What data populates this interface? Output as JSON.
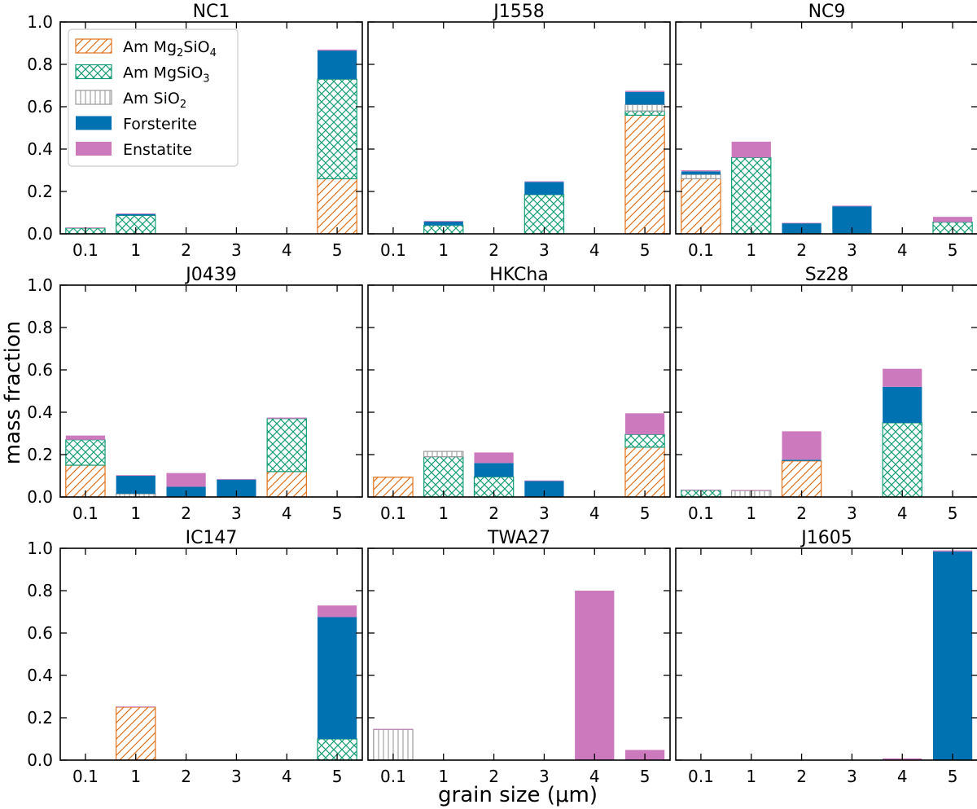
{
  "figure": {
    "ylabel": "mass fraction",
    "xlabel": "grain size (μm)"
  },
  "colors": {
    "am_mg2sio4": "#e0711a",
    "am_mgsio3": "#139d76",
    "am_sio2": "#9a9a9a",
    "forsterite": "#0072b2",
    "enstatite": "#cc79be"
  },
  "legend": {
    "placement": "upper-left of first panel",
    "entries": [
      {
        "key": "am_mg2sio4",
        "label": "Am Mg2SiO4",
        "prefix": "Am Mg",
        "sub1": "2",
        "mid": "SiO",
        "sub2": "4",
        "pattern": "diagonal-hatch"
      },
      {
        "key": "am_mgsio3",
        "label": "Am MgSiO3",
        "prefix": "Am MgSiO",
        "sub1": "3",
        "mid": "",
        "sub2": "",
        "pattern": "cross-hatch"
      },
      {
        "key": "am_sio2",
        "label": "Am SiO2",
        "prefix": "Am SiO",
        "sub1": "2",
        "mid": "",
        "sub2": "",
        "pattern": "vertical-hatch"
      },
      {
        "key": "forsterite",
        "label": "Forsterite",
        "prefix": "Forsterite",
        "sub1": "",
        "mid": "",
        "sub2": "",
        "pattern": "solid"
      },
      {
        "key": "enstatite",
        "label": "Enstatite",
        "prefix": "Enstatite",
        "sub1": "",
        "mid": "",
        "sub2": "",
        "pattern": "solid"
      }
    ]
  },
  "chart_data": {
    "type": "bar",
    "stacked": true,
    "categories": [
      "0.1",
      "1",
      "2",
      "3",
      "4",
      "5"
    ],
    "ylim": [
      0,
      1.0
    ],
    "yticks": [
      "0.0",
      "0.2",
      "0.4",
      "0.6",
      "0.8",
      "1.0"
    ],
    "series_order": [
      "am_mg2sio4",
      "am_mgsio3",
      "am_sio2",
      "forsterite",
      "enstatite"
    ],
    "panels": [
      {
        "title": "NC1",
        "series": {
          "am_mg2sio4": [
            0,
            0,
            0,
            0,
            0,
            0.26
          ],
          "am_mgsio3": [
            0.027,
            0.087,
            0,
            0,
            0,
            0.47
          ],
          "am_sio2": [
            0,
            0,
            0,
            0,
            0,
            0
          ],
          "forsterite": [
            0,
            0.007,
            0,
            0,
            0,
            0.135
          ],
          "enstatite": [
            0.003,
            0.002,
            0,
            0,
            0,
            0.005
          ]
        }
      },
      {
        "title": "J1558",
        "series": {
          "am_mg2sio4": [
            0,
            0,
            0,
            0,
            0,
            0.56
          ],
          "am_mgsio3": [
            0,
            0.04,
            0,
            0.185,
            0,
            0.02
          ],
          "am_sio2": [
            0,
            0,
            0,
            0,
            0,
            0.03
          ],
          "forsterite": [
            0,
            0.018,
            0,
            0.06,
            0,
            0.06
          ],
          "enstatite": [
            0,
            0.003,
            0,
            0.003,
            0,
            0.005
          ]
        }
      },
      {
        "title": "NC9",
        "series": {
          "am_mg2sio4": [
            0.26,
            0,
            0,
            0,
            0,
            0
          ],
          "am_mgsio3": [
            0,
            0.36,
            0,
            0,
            0,
            0.055
          ],
          "am_sio2": [
            0.02,
            0,
            0,
            0,
            0,
            0
          ],
          "forsterite": [
            0.015,
            0,
            0.05,
            0.13,
            0,
            0
          ],
          "enstatite": [
            0.005,
            0.075,
            0.002,
            0.003,
            0,
            0.025
          ]
        }
      },
      {
        "title": "J0439",
        "series": {
          "am_mg2sio4": [
            0.15,
            0,
            0,
            0,
            0.12,
            0
          ],
          "am_mgsio3": [
            0.12,
            0,
            0,
            0,
            0.25,
            0
          ],
          "am_sio2": [
            0,
            0.015,
            0,
            0,
            0,
            0
          ],
          "forsterite": [
            0,
            0.085,
            0.048,
            0.082,
            0,
            0
          ],
          "enstatite": [
            0.02,
            0.003,
            0.065,
            0.003,
            0.005,
            0
          ]
        }
      },
      {
        "title": "HKCha",
        "series": {
          "am_mg2sio4": [
            0.093,
            0,
            0,
            0,
            0,
            0.235
          ],
          "am_mgsio3": [
            0,
            0.19,
            0.095,
            0,
            0,
            0.06
          ],
          "am_sio2": [
            0,
            0.025,
            0,
            0,
            0,
            0
          ],
          "forsterite": [
            0,
            0,
            0.065,
            0.075,
            0,
            0
          ],
          "enstatite": [
            0,
            0,
            0.05,
            0.003,
            0,
            0.1
          ]
        }
      },
      {
        "title": "Sz28",
        "series": {
          "am_mg2sio4": [
            0,
            0,
            0.17,
            0,
            0,
            0
          ],
          "am_mgsio3": [
            0.032,
            0,
            0,
            0,
            0.35,
            0
          ],
          "am_sio2": [
            0,
            0.03,
            0,
            0,
            0,
            0
          ],
          "forsterite": [
            0,
            0,
            0.006,
            0,
            0.17,
            0
          ],
          "enstatite": [
            0.002,
            0.003,
            0.134,
            0,
            0.085,
            0
          ]
        }
      },
      {
        "title": "IC147",
        "series": {
          "am_mg2sio4": [
            0,
            0.25,
            0,
            0,
            0,
            0
          ],
          "am_mgsio3": [
            0,
            0,
            0,
            0,
            0,
            0.1
          ],
          "am_sio2": [
            0,
            0,
            0,
            0,
            0,
            0
          ],
          "forsterite": [
            0,
            0,
            0,
            0,
            0,
            0.575
          ],
          "enstatite": [
            0,
            0.003,
            0,
            0,
            0,
            0.055
          ]
        }
      },
      {
        "title": "TWA27",
        "series": {
          "am_mg2sio4": [
            0,
            0,
            0,
            0,
            0,
            0
          ],
          "am_mgsio3": [
            0,
            0,
            0,
            0,
            0,
            0
          ],
          "am_sio2": [
            0.145,
            0,
            0,
            0,
            0,
            0
          ],
          "forsterite": [
            0,
            0,
            0,
            0,
            0,
            0
          ],
          "enstatite": [
            0.002,
            0,
            0,
            0,
            0.8,
            0.048
          ]
        }
      },
      {
        "title": "J1605",
        "series": {
          "am_mg2sio4": [
            0,
            0,
            0,
            0,
            0,
            0
          ],
          "am_mgsio3": [
            0,
            0,
            0,
            0,
            0,
            0
          ],
          "am_sio2": [
            0,
            0,
            0,
            0,
            0,
            0
          ],
          "forsterite": [
            0,
            0,
            0,
            0,
            0,
            0.985
          ],
          "enstatite": [
            0,
            0,
            0,
            0,
            0.008,
            0.005
          ]
        }
      }
    ]
  }
}
